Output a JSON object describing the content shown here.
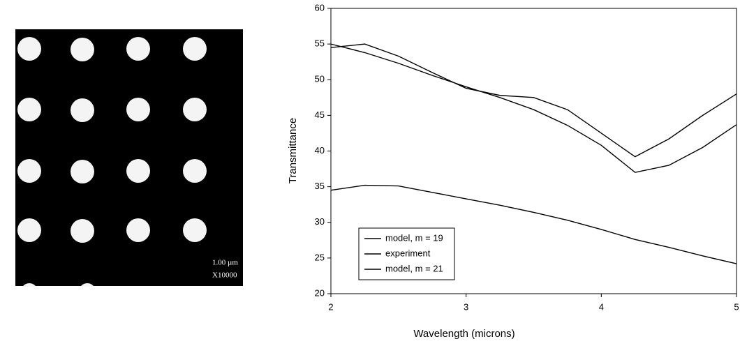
{
  "image": {
    "scale_label": "1.00 µm",
    "magnification": "X10000"
  },
  "chart_data": {
    "type": "line",
    "x_label": "Wavelength (microns)",
    "y_label": "Transmittance",
    "x": [
      2,
      2.25,
      2.5,
      2.75,
      3,
      3.25,
      3.5,
      3.75,
      4,
      4.25,
      4.5,
      4.75,
      5
    ],
    "series": [
      {
        "name": "model, m = 19",
        "color": "#000000",
        "values": [
          55,
          53.8,
          52.3,
          50.6,
          49,
          47.5,
          45.8,
          43.6,
          40.8,
          37,
          38,
          40.5,
          43.7
        ]
      },
      {
        "name": "experiment",
        "color": "#000000",
        "values": [
          54.5,
          55,
          53.3,
          51,
          48.8,
          47.8,
          47.5,
          45.8,
          42.5,
          39.2,
          41.7,
          45,
          48
        ]
      },
      {
        "name": "model, m = 21",
        "color": "#000000",
        "values": [
          34.5,
          35.2,
          35.1,
          34.2,
          33.3,
          32.4,
          31.4,
          30.3,
          29,
          27.6,
          26.5,
          25.3,
          24.2
        ]
      }
    ],
    "xlim": [
      2,
      5
    ],
    "xticks": [
      2,
      3,
      4,
      5
    ],
    "ylim": [
      20,
      60
    ],
    "yticks": [
      20,
      25,
      30,
      35,
      40,
      45,
      50,
      55,
      60
    ],
    "legend": "lower left"
  }
}
